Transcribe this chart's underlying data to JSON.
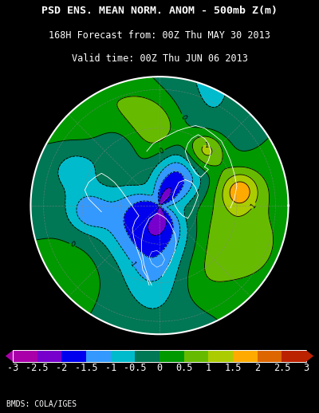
{
  "title_line1": "PSD ENS. MEAN NORM. ANOM - 500mb Z(m)",
  "title_line2": "168H Forecast from: 00Z Thu MAY 30 2013",
  "title_line3": "Valid time: 00Z Thu JUN 06 2013",
  "credit": "BMDS: COLA/IGES",
  "colorbar_levels": [
    -3,
    -2.5,
    -2,
    -1.5,
    -1,
    -0.5,
    0,
    0.5,
    1,
    1.5,
    2,
    2.5,
    3
  ],
  "colorbar_colors": [
    "#aa00aa",
    "#7700cc",
    "#0000ee",
    "#3399ff",
    "#00bbcc",
    "#007755",
    "#009900",
    "#66bb00",
    "#aacc00",
    "#ffaa00",
    "#dd6600",
    "#bb2200"
  ],
  "bg_color": "#000000",
  "map_border_color": "#ffffff",
  "contour_color": "#000000",
  "coastline_color": "#ffffff",
  "grid_color": "#888888",
  "title_color": "#ffffff",
  "title_fontsize": 9.5,
  "subtitle_fontsize": 8.5,
  "colorbar_label_color": "#ffffff",
  "colorbar_label_fontsize": 8.5,
  "fig_width": 4.0,
  "fig_height": 5.18,
  "fig_dpi": 100
}
